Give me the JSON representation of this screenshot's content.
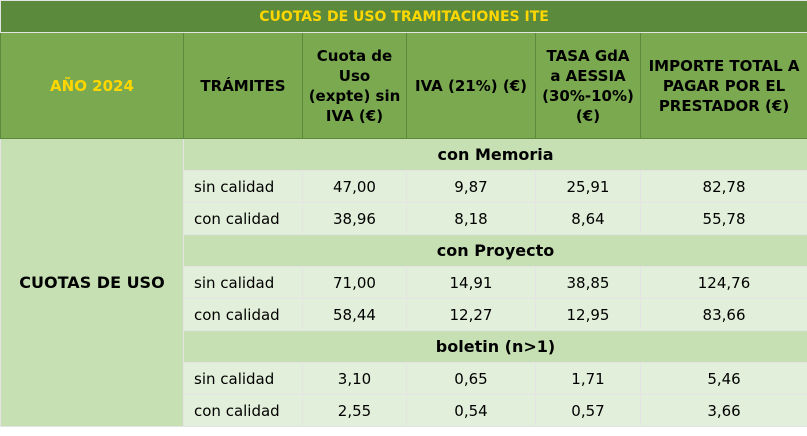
{
  "title": "CUOTAS DE USO TRAMITACIONES ITE",
  "header": {
    "year": "AÑO 2024",
    "columns": [
      "TRÁMITES",
      "Cuota de Uso (expte) sin IVA (€)",
      "IVA (21%) (€)",
      "TASA GdA a AESSIA (30%-10%) (€)",
      "IMPORTE TOTAL A PAGAR POR EL PRESTADOR (€)"
    ]
  },
  "row_group_label": "CUOTAS DE USO",
  "sections": [
    {
      "name": "con Memoria",
      "rows": [
        [
          "sin calidad",
          "47,00",
          "9,87",
          "25,91",
          "82,78"
        ],
        [
          "con calidad",
          "38,96",
          "8,18",
          "8,64",
          "55,78"
        ]
      ]
    },
    {
      "name": "con Proyecto",
      "rows": [
        [
          "sin calidad",
          "71,00",
          "14,91",
          "38,85",
          "124,76"
        ],
        [
          "con calidad",
          "58,44",
          "12,27",
          "12,95",
          "83,66"
        ]
      ]
    },
    {
      "name": "boletin (n>1)",
      "rows": [
        [
          "sin calidad",
          "3,10",
          "0,65",
          "1,71",
          "5,46"
        ],
        [
          "con calidad",
          "2,55",
          "0,54",
          "0,57",
          "3,66"
        ]
      ]
    }
  ]
}
